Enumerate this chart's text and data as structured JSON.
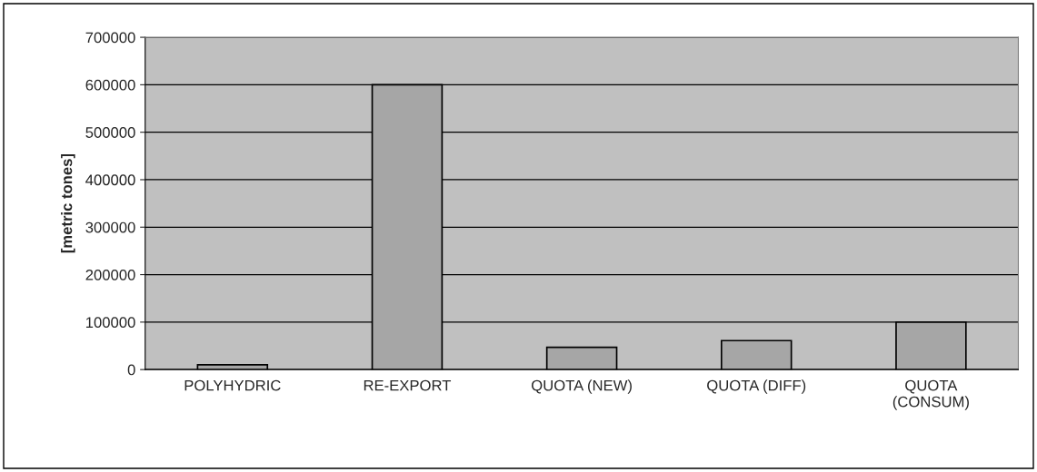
{
  "chart_data": {
    "type": "bar",
    "ylabel": "[metric tones]",
    "categories": [
      "POLYHYDRIC",
      "RE-EXPORT",
      "QUOTA (NEW)",
      "QUOTA (DIFF)",
      "QUOTA\n(CONSUM)"
    ],
    "values": [
      10000,
      600000,
      47000,
      61000,
      100000
    ],
    "color": "#a6a6a6",
    "ylim": [
      0,
      700000
    ],
    "yticks": [
      0,
      100000,
      200000,
      300000,
      400000,
      500000,
      600000,
      700000
    ],
    "grid": "y"
  }
}
